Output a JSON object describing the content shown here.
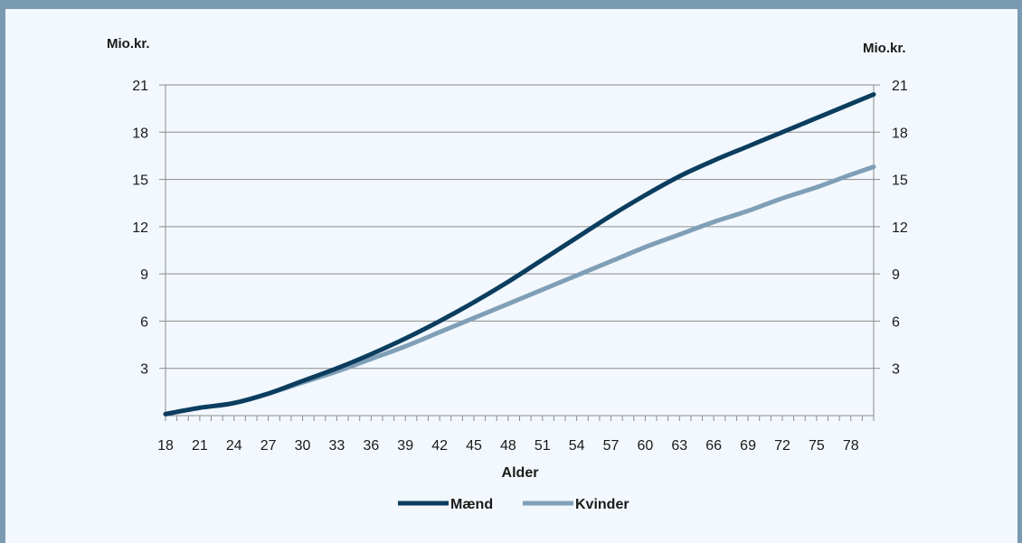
{
  "chart_data": {
    "type": "line",
    "xlabel": "Alder",
    "y_unit_left": "Mio.kr.",
    "y_unit_right": "Mio.kr.",
    "ylim": [
      0,
      21
    ],
    "yticks": [
      3,
      6,
      9,
      12,
      15,
      18,
      21
    ],
    "xlim": [
      18,
      80
    ],
    "xticks": [
      18,
      21,
      24,
      27,
      30,
      33,
      36,
      39,
      42,
      45,
      48,
      51,
      54,
      57,
      60,
      63,
      66,
      69,
      72,
      75,
      78
    ],
    "grid": "horizontal",
    "legend_position": "bottom-center",
    "series": [
      {
        "name": "Mænd",
        "color": "#0b3d5e",
        "x": [
          18,
          21,
          24,
          27,
          30,
          33,
          36,
          39,
          42,
          45,
          48,
          51,
          54,
          57,
          60,
          63,
          66,
          69,
          72,
          75,
          78,
          80
        ],
        "values": [
          0.1,
          0.5,
          0.8,
          1.4,
          2.2,
          3.0,
          3.9,
          4.9,
          6.0,
          7.2,
          8.5,
          9.9,
          11.3,
          12.7,
          14.0,
          15.2,
          16.2,
          17.1,
          18.0,
          18.9,
          19.8,
          20.4
        ]
      },
      {
        "name": "Kvinder",
        "color": "#7f9fb6",
        "x": [
          18,
          21,
          24,
          27,
          30,
          33,
          36,
          39,
          42,
          45,
          48,
          51,
          54,
          57,
          60,
          63,
          66,
          69,
          72,
          75,
          78,
          80
        ],
        "values": [
          0.1,
          0.5,
          0.8,
          1.4,
          2.1,
          2.8,
          3.6,
          4.4,
          5.3,
          6.2,
          7.1,
          8.0,
          8.9,
          9.8,
          10.7,
          11.5,
          12.3,
          13.0,
          13.8,
          14.5,
          15.3,
          15.8
        ]
      }
    ]
  }
}
